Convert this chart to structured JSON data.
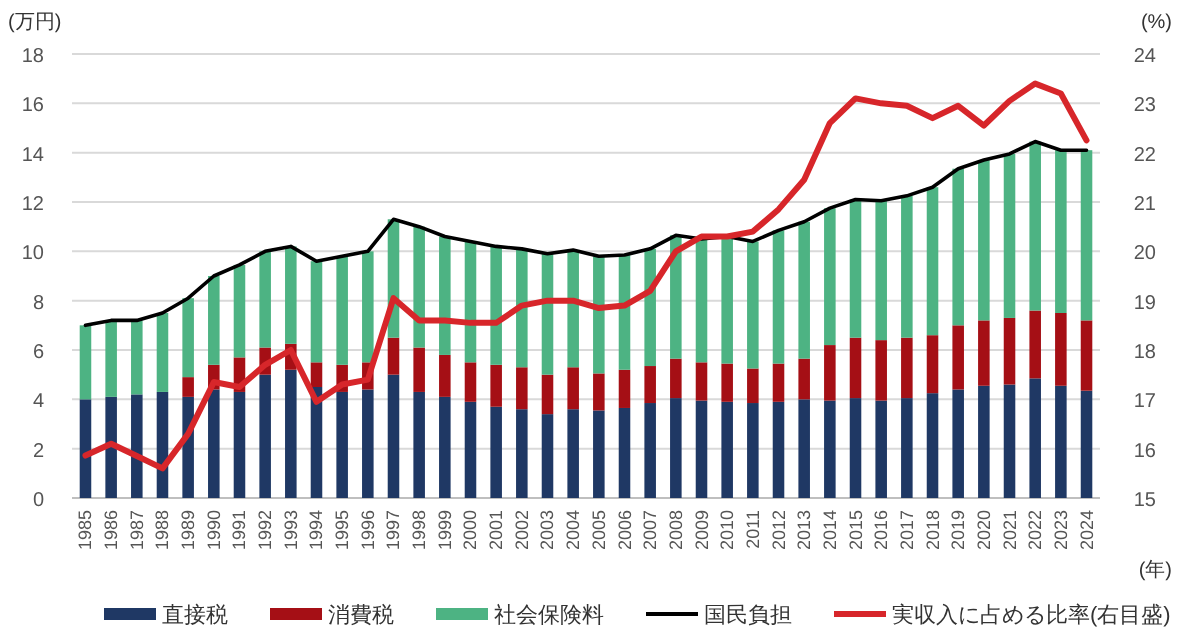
{
  "chart_data": {
    "type": "bar",
    "stacked": true,
    "ylabel": "(万円)",
    "y2label": "(%)",
    "xlabel": "(年)",
    "categories": [
      "1985",
      "1986",
      "1987",
      "1988",
      "1989",
      "1990",
      "1991",
      "1992",
      "1993",
      "1994",
      "1995",
      "1996",
      "1997",
      "1998",
      "1999",
      "2000",
      "2001",
      "2002",
      "2003",
      "2004",
      "2005",
      "2006",
      "2007",
      "2008",
      "2009",
      "2010",
      "2011",
      "2012",
      "2013",
      "2014",
      "2015",
      "2016",
      "2017",
      "2018",
      "2019",
      "2020",
      "2021",
      "2022",
      "2023",
      "2024"
    ],
    "series": [
      {
        "name": "直接税",
        "color": "#1f3864",
        "values": [
          4.0,
          4.1,
          4.2,
          4.3,
          4.1,
          4.4,
          4.3,
          5.0,
          5.2,
          4.5,
          4.3,
          4.4,
          5.0,
          4.3,
          4.1,
          3.9,
          3.7,
          3.6,
          3.4,
          3.6,
          3.55,
          3.65,
          3.85,
          4.05,
          3.95,
          3.9,
          3.85,
          3.9,
          4.0,
          3.95,
          4.05,
          3.95,
          4.05,
          4.25,
          4.4,
          4.55,
          4.6,
          4.85,
          4.55,
          4.35
        ]
      },
      {
        "name": "消費税",
        "color": "#a50f15",
        "values": [
          0,
          0,
          0,
          0,
          0.8,
          1.0,
          1.4,
          1.1,
          1.05,
          1.0,
          1.1,
          1.1,
          1.5,
          1.8,
          1.7,
          1.6,
          1.7,
          1.7,
          1.6,
          1.7,
          1.5,
          1.55,
          1.5,
          1.6,
          1.55,
          1.55,
          1.4,
          1.55,
          1.65,
          2.25,
          2.45,
          2.45,
          2.45,
          2.35,
          2.6,
          2.65,
          2.7,
          2.75,
          2.95,
          2.85
        ]
      },
      {
        "name": "社会保険料",
        "color": "#4db383",
        "values": [
          3.0,
          3.1,
          3.0,
          3.2,
          3.2,
          3.6,
          3.75,
          3.9,
          3.95,
          4.1,
          4.4,
          4.5,
          4.8,
          4.9,
          4.8,
          4.9,
          4.8,
          4.8,
          4.9,
          4.75,
          4.75,
          4.65,
          4.75,
          5.0,
          5.0,
          5.15,
          5.15,
          5.4,
          5.55,
          5.55,
          5.6,
          5.65,
          5.75,
          6.0,
          6.35,
          6.5,
          6.65,
          6.85,
          6.6,
          6.9
        ]
      },
      {
        "name": "国民負担",
        "type": "line",
        "color": "#000000",
        "values": [
          7.0,
          7.2,
          7.2,
          7.5,
          8.1,
          9.0,
          9.45,
          10.0,
          10.2,
          9.6,
          9.8,
          10.0,
          11.3,
          11.0,
          10.6,
          10.4,
          10.2,
          10.1,
          9.9,
          10.05,
          9.8,
          9.85,
          10.1,
          10.65,
          10.5,
          10.6,
          10.4,
          10.85,
          11.2,
          11.75,
          12.1,
          12.05,
          12.25,
          12.6,
          13.35,
          13.7,
          13.95,
          14.45,
          14.1,
          14.1
        ]
      },
      {
        "name": "実収入に占める比率(右目盛)",
        "type": "line",
        "axis": "y2",
        "color": "#d7262a",
        "values": [
          15.86,
          16.1,
          15.85,
          15.6,
          16.3,
          17.35,
          17.25,
          17.7,
          18.0,
          16.95,
          17.3,
          17.4,
          19.05,
          18.6,
          18.6,
          18.55,
          18.55,
          18.9,
          19.0,
          19.0,
          18.85,
          18.9,
          19.2,
          20.0,
          20.3,
          20.3,
          20.4,
          20.85,
          21.45,
          22.6,
          23.1,
          23.0,
          22.95,
          22.7,
          22.95,
          22.55,
          23.05,
          23.4,
          23.2,
          22.25
        ]
      }
    ],
    "ylim": [
      0,
      18
    ],
    "yticks": [
      0,
      2,
      4,
      6,
      8,
      10,
      12,
      14,
      16,
      18
    ],
    "y2lim": [
      15,
      24
    ],
    "y2ticks": [
      15,
      16,
      17,
      18,
      19,
      20,
      21,
      22,
      23,
      24
    ],
    "grid": "y",
    "legend": "bottom"
  }
}
